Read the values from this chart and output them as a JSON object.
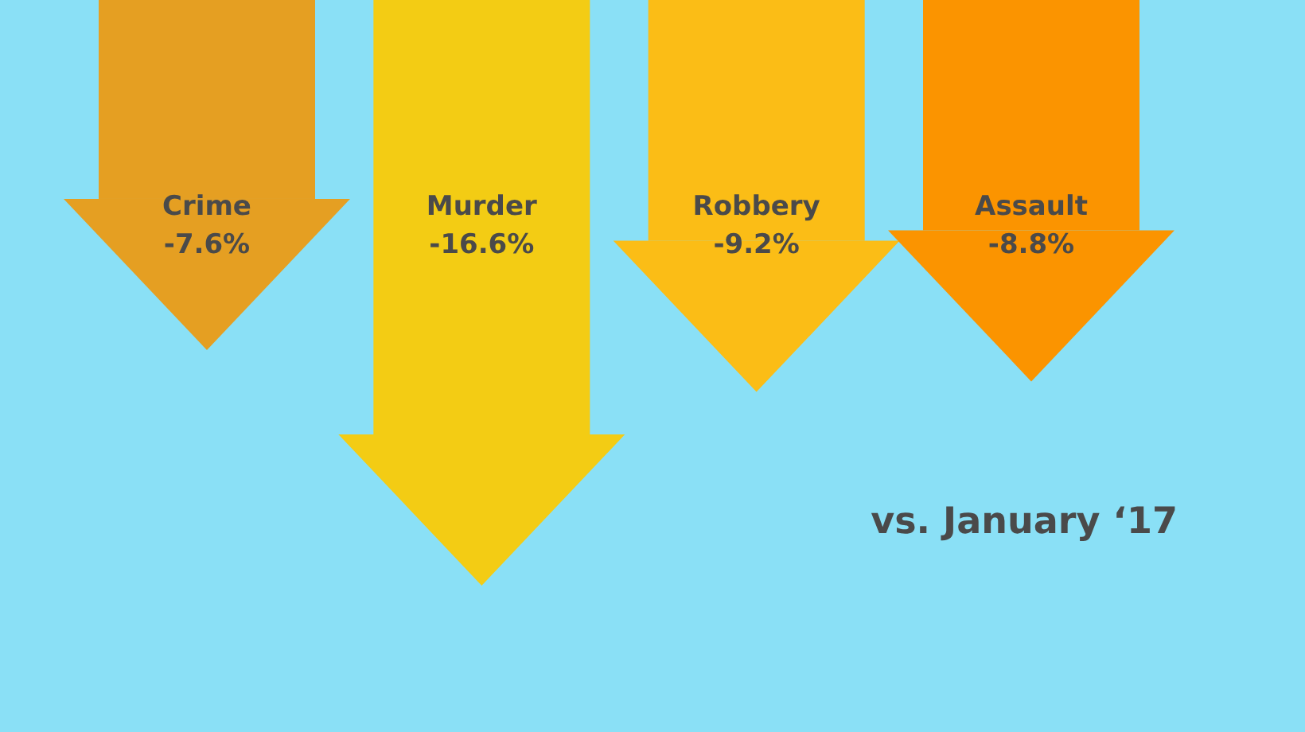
{
  "chart_data": {
    "type": "bar",
    "categories": [
      "Crime",
      "Murder",
      "Robbery",
      "Assault"
    ],
    "values": [
      -7.6,
      -16.6,
      -9.2,
      -8.8
    ],
    "colors": [
      "#e59f22",
      "#f3cc14",
      "#fbbd16",
      "#fb9400"
    ],
    "value_labels": [
      "-7.6%",
      "-16.6%",
      "-9.2%",
      "-8.8%"
    ],
    "annotations": [
      "vs. January ‘17"
    ]
  }
}
